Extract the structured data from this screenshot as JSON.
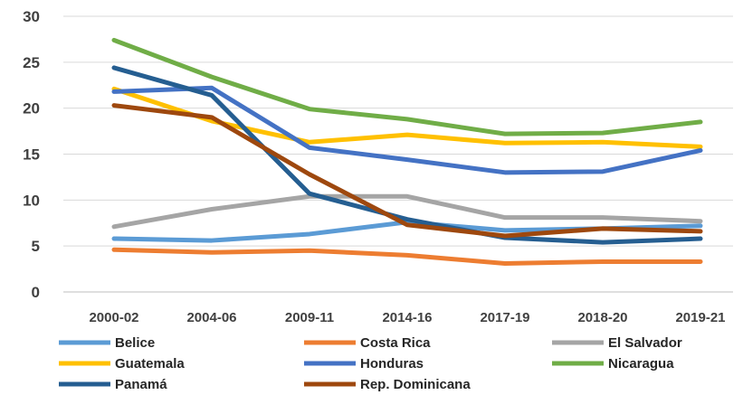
{
  "chart_data": {
    "type": "line",
    "title": "",
    "xlabel": "",
    "ylabel": "",
    "ylim": [
      0,
      30
    ],
    "yticks": [
      0,
      5,
      10,
      15,
      20,
      25,
      30
    ],
    "grid": "horizontal",
    "legend_position": "bottom",
    "categories": [
      "2000-02",
      "2004-06",
      "2009-11",
      "2014-16",
      "2017-19",
      "2018-20",
      "2019-21"
    ],
    "series": [
      {
        "name": "Belice",
        "color": "#5B9BD5",
        "values": [
          5.8,
          5.6,
          6.3,
          7.6,
          6.7,
          6.9,
          7.2
        ]
      },
      {
        "name": "Costa Rica",
        "color": "#ED7D31",
        "values": [
          4.6,
          4.3,
          4.5,
          4.0,
          3.1,
          3.3,
          3.3
        ]
      },
      {
        "name": "El Salvador",
        "color": "#A5A5A5",
        "values": [
          7.1,
          9.0,
          10.4,
          10.4,
          8.1,
          8.1,
          7.7
        ]
      },
      {
        "name": "Guatemala",
        "color": "#FFC000",
        "values": [
          22.1,
          18.6,
          16.3,
          17.1,
          16.2,
          16.3,
          15.8
        ]
      },
      {
        "name": "Honduras",
        "color": "#4472C4",
        "values": [
          21.8,
          22.2,
          15.7,
          14.4,
          13.0,
          13.1,
          15.4
        ]
      },
      {
        "name": "Nicaragua",
        "color": "#70AD47",
        "values": [
          27.4,
          23.4,
          19.9,
          18.8,
          17.2,
          17.3,
          18.5
        ]
      },
      {
        "name": "Panamá",
        "color": "#255E91",
        "values": [
          24.4,
          21.4,
          10.7,
          7.9,
          5.9,
          5.4,
          5.8
        ]
      },
      {
        "name": "Rep. Dominicana",
        "color": "#9E480E",
        "values": [
          20.3,
          19.0,
          12.8,
          7.3,
          6.1,
          6.9,
          6.6
        ]
      }
    ]
  }
}
